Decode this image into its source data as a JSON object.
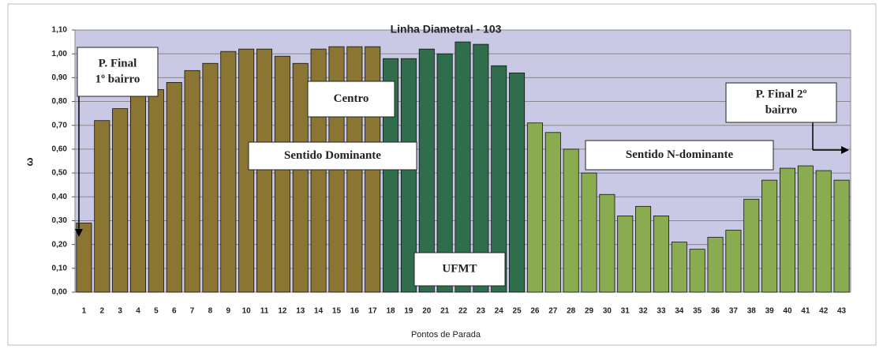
{
  "chart_data": {
    "type": "bar",
    "title": "Linha Diametral - 103",
    "x_label": "Pontos de Parada",
    "y_label": "ω",
    "categories": [
      "1",
      "2",
      "3",
      "4",
      "5",
      "6",
      "7",
      "8",
      "9",
      "10",
      "11",
      "12",
      "13",
      "14",
      "15",
      "16",
      "17",
      "18",
      "19",
      "20",
      "21",
      "22",
      "23",
      "24",
      "25",
      "26",
      "27",
      "28",
      "29",
      "30",
      "31",
      "32",
      "33",
      "34",
      "35",
      "36",
      "37",
      "38",
      "39",
      "40",
      "41",
      "42",
      "43"
    ],
    "values": [
      0.29,
      0.72,
      0.77,
      0.83,
      0.85,
      0.88,
      0.93,
      0.96,
      1.01,
      1.02,
      1.02,
      0.99,
      0.96,
      1.02,
      1.03,
      1.03,
      1.03,
      0.98,
      0.98,
      1.02,
      1.0,
      1.05,
      1.04,
      0.95,
      0.92,
      0.71,
      0.67,
      0.6,
      0.5,
      0.41,
      0.32,
      0.36,
      0.32,
      0.21,
      0.18,
      0.23,
      0.26,
      0.39,
      0.47,
      0.52,
      0.53,
      0.51,
      0.47
    ],
    "colors": [
      "#8a7532",
      "#8a7532",
      "#8a7532",
      "#8a7532",
      "#8a7532",
      "#8a7532",
      "#8a7532",
      "#8a7532",
      "#8a7532",
      "#8a7532",
      "#8a7532",
      "#8a7532",
      "#8a7532",
      "#8a7532",
      "#8a7532",
      "#8a7532",
      "#8a7532",
      "#2f6d4d",
      "#2f6d4d",
      "#2f6d4d",
      "#2f6d4d",
      "#2f6d4d",
      "#2f6d4d",
      "#2f6d4d",
      "#2f6d4d",
      "#8bab50",
      "#8bab50",
      "#8bab50",
      "#8bab50",
      "#8bab50",
      "#8bab50",
      "#8bab50",
      "#8bab50",
      "#8bab50",
      "#8bab50",
      "#8bab50",
      "#8bab50",
      "#8bab50",
      "#8bab50",
      "#8bab50",
      "#8bab50",
      "#8bab50",
      "#8bab50"
    ],
    "ylim": [
      0,
      1.1
    ],
    "yticks": [
      {
        "value": 0,
        "label": "0,00"
      },
      {
        "value": 0.1,
        "label": "0,10"
      },
      {
        "value": 0.2,
        "label": "0,20"
      },
      {
        "value": 0.3,
        "label": "0,30"
      },
      {
        "value": 0.4,
        "label": "0,40"
      },
      {
        "value": 0.5,
        "label": "0,50"
      },
      {
        "value": 0.6,
        "label": "0,60"
      },
      {
        "value": 0.7,
        "label": "0,70"
      },
      {
        "value": 0.8,
        "label": "0,80"
      },
      {
        "value": 0.9,
        "label": "0,90"
      },
      {
        "value": 1.0,
        "label": "1,00"
      },
      {
        "value": 1.1,
        "label": "1,10"
      }
    ],
    "grid": true,
    "annotations": [
      [
        "P. Final",
        "1º bairro"
      ],
      [
        "Centro"
      ],
      [
        "Sentido Dominante"
      ],
      [
        "UFMT"
      ],
      [
        "Sentido N-dominante"
      ],
      [
        "P. Final 2º",
        "bairro"
      ]
    ]
  }
}
